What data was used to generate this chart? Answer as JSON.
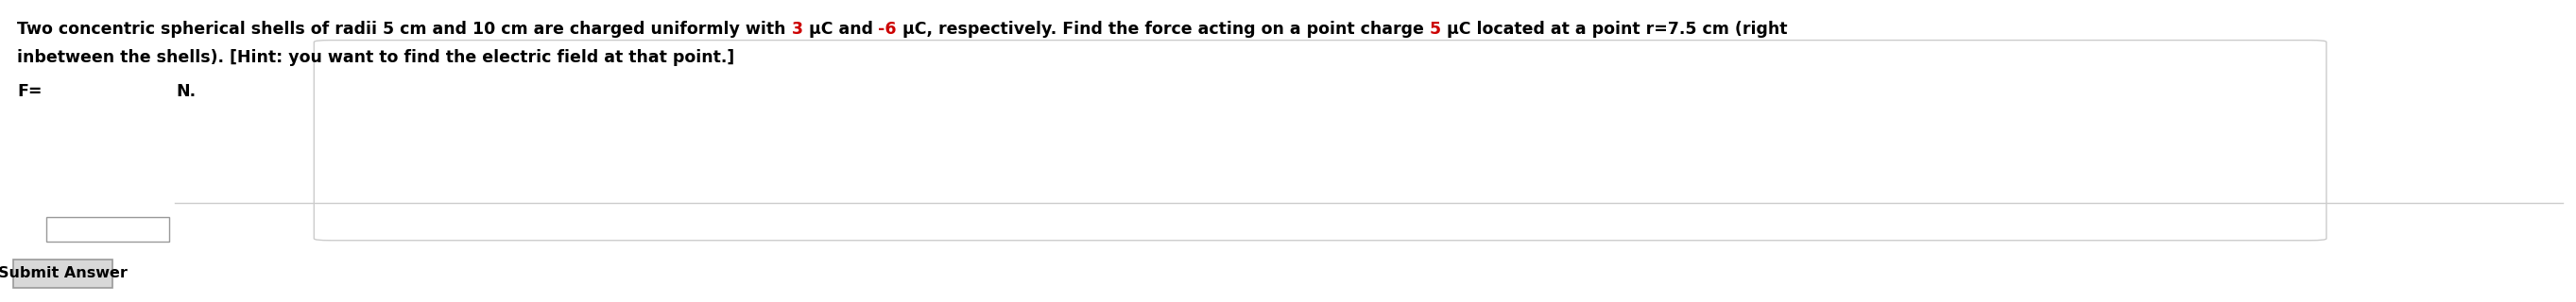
{
  "line1_parts": [
    {
      "text": "Two concentric spherical shells of radii 5 cm and 10 cm are charged uniformly with ",
      "color": "#000000"
    },
    {
      "text": "3",
      "color": "#cc0000"
    },
    {
      "text": " μC and ",
      "color": "#000000"
    },
    {
      "text": "-6",
      "color": "#cc0000"
    },
    {
      "text": " μC, respectively. Find the force acting on a point charge ",
      "color": "#000000"
    },
    {
      "text": "5",
      "color": "#cc0000"
    },
    {
      "text": " μC located at a point r=7.5 cm (right",
      "color": "#000000"
    }
  ],
  "line2": "inbetween the shells). [Hint: you want to find the electric field at that point.]",
  "line2_color": "#000000",
  "f_label": "F=",
  "unit_label": "N.",
  "submit_text": "Submit Answer",
  "background_color": "#ffffff",
  "box_border_color": "#999999",
  "outer_border_color": "#cccccc",
  "submit_bg_color": "#d8d8d8",
  "font_size": 12.5,
  "font_family": "DejaVu Sans",
  "font_weight": "bold"
}
